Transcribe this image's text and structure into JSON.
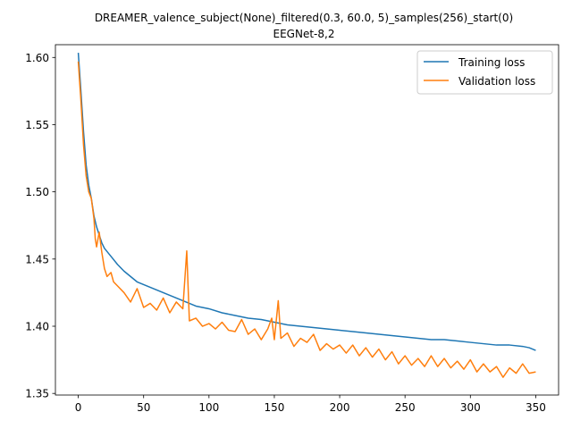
{
  "chart_data": {
    "type": "line",
    "title": "DREAMER_valence_subject(None)_filtered(0.3, 60.0, 5)_samples(256)_start(0)",
    "subtitle": "EEGNet-8,2",
    "xlabel": "",
    "ylabel": "",
    "xlim": [
      -17.5,
      367.5
    ],
    "ylim": [
      1.3488,
      1.6095
    ],
    "x_ticks": [
      0,
      50,
      100,
      150,
      200,
      250,
      300,
      350
    ],
    "y_ticks": [
      1.35,
      1.4,
      1.45,
      1.5,
      1.55,
      1.6
    ],
    "grid": false,
    "legend_position": "top-right",
    "series": [
      {
        "name": "Training loss",
        "color": "#1f77b4",
        "points": [
          [
            0,
            1.6035
          ],
          [
            2,
            1.575
          ],
          [
            4,
            1.545
          ],
          [
            6,
            1.52
          ],
          [
            8,
            1.505
          ],
          [
            10,
            1.495
          ],
          [
            12,
            1.482
          ],
          [
            14,
            1.474
          ],
          [
            16,
            1.468
          ],
          [
            18,
            1.462
          ],
          [
            20,
            1.458
          ],
          [
            25,
            1.452
          ],
          [
            30,
            1.446
          ],
          [
            35,
            1.441
          ],
          [
            40,
            1.437
          ],
          [
            45,
            1.433
          ],
          [
            50,
            1.431
          ],
          [
            55,
            1.429
          ],
          [
            60,
            1.427
          ],
          [
            65,
            1.425
          ],
          [
            70,
            1.423
          ],
          [
            75,
            1.421
          ],
          [
            80,
            1.419
          ],
          [
            85,
            1.417
          ],
          [
            90,
            1.415
          ],
          [
            95,
            1.414
          ],
          [
            100,
            1.413
          ],
          [
            110,
            1.41
          ],
          [
            120,
            1.408
          ],
          [
            130,
            1.406
          ],
          [
            140,
            1.405
          ],
          [
            150,
            1.403
          ],
          [
            160,
            1.401
          ],
          [
            170,
            1.4
          ],
          [
            180,
            1.399
          ],
          [
            190,
            1.398
          ],
          [
            200,
            1.397
          ],
          [
            210,
            1.396
          ],
          [
            220,
            1.395
          ],
          [
            230,
            1.394
          ],
          [
            240,
            1.393
          ],
          [
            250,
            1.392
          ],
          [
            260,
            1.391
          ],
          [
            270,
            1.39
          ],
          [
            280,
            1.39
          ],
          [
            290,
            1.389
          ],
          [
            300,
            1.388
          ],
          [
            310,
            1.387
          ],
          [
            320,
            1.386
          ],
          [
            330,
            1.386
          ],
          [
            340,
            1.385
          ],
          [
            345,
            1.384
          ],
          [
            350,
            1.382
          ]
        ]
      },
      {
        "name": "Validation loss",
        "color": "#ff7f0e",
        "points": [
          [
            0,
            1.597
          ],
          [
            2,
            1.568
          ],
          [
            4,
            1.535
          ],
          [
            6,
            1.512
          ],
          [
            8,
            1.5
          ],
          [
            10,
            1.495
          ],
          [
            12,
            1.48
          ],
          [
            13,
            1.465
          ],
          [
            14,
            1.459
          ],
          [
            16,
            1.47
          ],
          [
            18,
            1.455
          ],
          [
            20,
            1.443
          ],
          [
            22,
            1.437
          ],
          [
            25,
            1.44
          ],
          [
            27,
            1.433
          ],
          [
            30,
            1.43
          ],
          [
            35,
            1.425
          ],
          [
            40,
            1.418
          ],
          [
            45,
            1.428
          ],
          [
            50,
            1.414
          ],
          [
            55,
            1.417
          ],
          [
            60,
            1.412
          ],
          [
            65,
            1.421
          ],
          [
            70,
            1.41
          ],
          [
            75,
            1.418
          ],
          [
            80,
            1.413
          ],
          [
            83,
            1.456
          ],
          [
            85,
            1.404
          ],
          [
            90,
            1.406
          ],
          [
            95,
            1.4
          ],
          [
            100,
            1.402
          ],
          [
            105,
            1.398
          ],
          [
            110,
            1.403
          ],
          [
            115,
            1.397
          ],
          [
            120,
            1.396
          ],
          [
            125,
            1.405
          ],
          [
            130,
            1.394
          ],
          [
            135,
            1.398
          ],
          [
            140,
            1.39
          ],
          [
            145,
            1.398
          ],
          [
            148,
            1.406
          ],
          [
            150,
            1.39
          ],
          [
            153,
            1.419
          ],
          [
            155,
            1.391
          ],
          [
            160,
            1.395
          ],
          [
            165,
            1.385
          ],
          [
            170,
            1.391
          ],
          [
            175,
            1.388
          ],
          [
            180,
            1.394
          ],
          [
            185,
            1.382
          ],
          [
            190,
            1.387
          ],
          [
            195,
            1.383
          ],
          [
            200,
            1.386
          ],
          [
            205,
            1.38
          ],
          [
            210,
            1.386
          ],
          [
            215,
            1.378
          ],
          [
            220,
            1.384
          ],
          [
            225,
            1.377
          ],
          [
            230,
            1.383
          ],
          [
            235,
            1.375
          ],
          [
            240,
            1.381
          ],
          [
            245,
            1.372
          ],
          [
            250,
            1.378
          ],
          [
            255,
            1.371
          ],
          [
            260,
            1.376
          ],
          [
            265,
            1.37
          ],
          [
            270,
            1.378
          ],
          [
            275,
            1.37
          ],
          [
            280,
            1.376
          ],
          [
            285,
            1.369
          ],
          [
            290,
            1.374
          ],
          [
            295,
            1.368
          ],
          [
            300,
            1.375
          ],
          [
            305,
            1.366
          ],
          [
            310,
            1.372
          ],
          [
            315,
            1.366
          ],
          [
            320,
            1.37
          ],
          [
            325,
            1.362
          ],
          [
            330,
            1.369
          ],
          [
            335,
            1.365
          ],
          [
            340,
            1.372
          ],
          [
            345,
            1.365
          ],
          [
            350,
            1.366
          ]
        ]
      }
    ]
  }
}
